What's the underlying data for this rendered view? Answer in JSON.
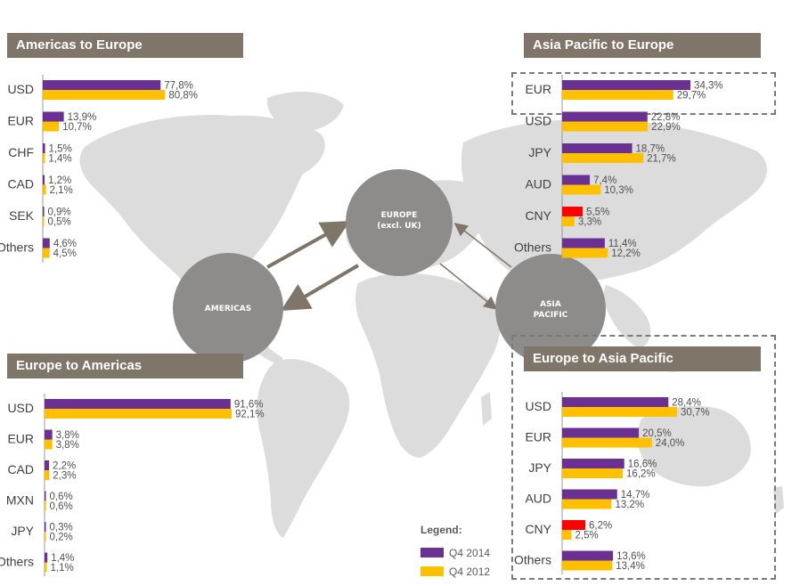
{
  "colors": {
    "q4_2014": "#6a3092",
    "q4_2012": "#ffc000",
    "highlight": "#ff0000",
    "title_bg": "#7f7569",
    "map": "#dcdcdc",
    "circle": "#8e8c8a",
    "arrow": "#7f7569"
  },
  "regions": {
    "americas": "AMERICAS",
    "europe_line1": "EUROPE",
    "europe_line2": "(excl. UK)",
    "asia_line1": "ASIA",
    "asia_line2": "PACIFIC"
  },
  "legend": {
    "title": "Legend:",
    "series": [
      "Q4 2014",
      "Q4 2012"
    ]
  },
  "chart_data": [
    {
      "type": "bar",
      "orientation": "horizontal",
      "title": "Americas to Europe",
      "categories": [
        "USD",
        "EUR",
        "CHF",
        "CAD",
        "SEK",
        "Others"
      ],
      "series": [
        {
          "name": "Q4 2014",
          "values": [
            77.8,
            13.9,
            1.5,
            1.2,
            0.9,
            4.6
          ],
          "labels": [
            "77,8%",
            "13,9%",
            "1,5%",
            "1,2%",
            "0,9%",
            "4,6%"
          ]
        },
        {
          "name": "Q4 2012",
          "values": [
            80.8,
            10.7,
            1.4,
            2.1,
            0.5,
            4.5
          ],
          "labels": [
            "80,8%",
            "10,7%",
            "1,4%",
            "2,1%",
            "0,5%",
            "4,5%"
          ]
        }
      ]
    },
    {
      "type": "bar",
      "orientation": "horizontal",
      "title": "Asia Pacific to Europe",
      "categories": [
        "EUR",
        "USD",
        "JPY",
        "AUD",
        "CNY",
        "Others"
      ],
      "highlight_category": "CNY",
      "series": [
        {
          "name": "Q4 2014",
          "values": [
            34.3,
            22.8,
            18.7,
            7.4,
            5.5,
            11.4
          ],
          "labels": [
            "34,3%",
            "22,8%",
            "18,7%",
            "7,4%",
            "5,5%",
            "11,4%"
          ]
        },
        {
          "name": "Q4 2012",
          "values": [
            29.7,
            22.9,
            21.7,
            10.3,
            3.3,
            12.2
          ],
          "labels": [
            "29,7%",
            "22,9%",
            "21,7%",
            "10,3%",
            "3,3%",
            "12,2%"
          ]
        }
      ]
    },
    {
      "type": "bar",
      "orientation": "horizontal",
      "title": "Europe to Americas",
      "categories": [
        "USD",
        "EUR",
        "CAD",
        "MXN",
        "JPY",
        "Others"
      ],
      "series": [
        {
          "name": "Q4 2014",
          "values": [
            91.6,
            3.8,
            2.2,
            0.6,
            0.3,
            1.4
          ],
          "labels": [
            "91,6%",
            "3,8%",
            "2,2%",
            "0,6%",
            "0,3%",
            "1,4%"
          ]
        },
        {
          "name": "Q4 2012",
          "values": [
            92.1,
            3.8,
            2.3,
            0.6,
            0.2,
            1.1
          ],
          "labels": [
            "92,1%",
            "3,8%",
            "2,3%",
            "0,6%",
            "0,2%",
            "1,1%"
          ]
        }
      ]
    },
    {
      "type": "bar",
      "orientation": "horizontal",
      "title": "Europe to Asia Pacific",
      "categories": [
        "USD",
        "EUR",
        "JPY",
        "AUD",
        "CNY",
        "Others"
      ],
      "highlight_category": "CNY",
      "series": [
        {
          "name": "Q4 2014",
          "values": [
            28.4,
            20.5,
            16.6,
            14.7,
            6.2,
            13.6
          ],
          "labels": [
            "28,4%",
            "20,5%",
            "16,6%",
            "14,7%",
            "6,2%",
            "13,6%"
          ]
        },
        {
          "name": "Q4 2012",
          "values": [
            30.7,
            24.0,
            16.2,
            13.2,
            2.5,
            13.4
          ],
          "labels": [
            "30,7%",
            "24,0%",
            "16,2%",
            "13,2%",
            "2,5%",
            "13,4%"
          ]
        }
      ]
    }
  ]
}
